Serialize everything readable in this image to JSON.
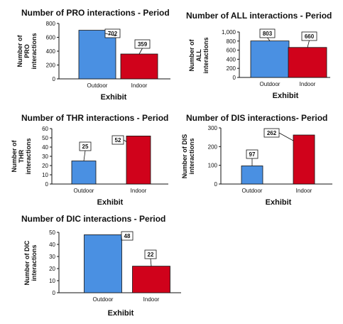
{
  "chart_data": [
    {
      "type": "bar",
      "title": "Number of PRO interactions - Period",
      "xlabel": "Exhibit",
      "ylabel": [
        "Number of",
        "PRO",
        "interactions"
      ],
      "categories": [
        "Outdoor",
        "Indoor"
      ],
      "values": [
        702,
        359
      ],
      "data_labels": [
        "702",
        "359"
      ],
      "yticks": [
        "0",
        "200",
        "400",
        "600",
        "800"
      ],
      "ylim": [
        0,
        800
      ],
      "colors": [
        "#4a90e2",
        "#d0021b"
      ],
      "grid": false,
      "legend": "none"
    },
    {
      "type": "bar",
      "title": "Number of ALL interactions - Period",
      "xlabel": "Exhibit",
      "ylabel": [
        "Number of",
        "ALL",
        "interactions"
      ],
      "categories": [
        "Outdoor",
        "Indoor"
      ],
      "values": [
        803,
        660
      ],
      "data_labels": [
        "803",
        "660"
      ],
      "yticks": [
        "0",
        "200",
        "400",
        "600",
        "800",
        "1,000"
      ],
      "ylim": [
        0,
        1000
      ],
      "colors": [
        "#4a90e2",
        "#d0021b"
      ],
      "grid": false,
      "legend": "none"
    },
    {
      "type": "bar",
      "title": "Number of THR interactions - Period",
      "xlabel": "Exhibit",
      "ylabel": [
        "Number of",
        "THR",
        "interactions"
      ],
      "categories": [
        "Outdoor",
        "Indoor"
      ],
      "values": [
        25,
        52
      ],
      "data_labels": [
        "25",
        "52"
      ],
      "yticks": [
        "0",
        "10",
        "20",
        "30",
        "40",
        "50",
        "60"
      ],
      "ylim": [
        0,
        60
      ],
      "colors": [
        "#4a90e2",
        "#d0021b"
      ],
      "grid": false,
      "legend": "none"
    },
    {
      "type": "bar",
      "title": "Number of DIS interactions- Period",
      "xlabel": "Exhibit",
      "ylabel": [
        "Number of DIS",
        "interactions"
      ],
      "categories": [
        "Outdoor",
        "Indoor"
      ],
      "values": [
        97,
        262
      ],
      "data_labels": [
        "97",
        "262"
      ],
      "yticks": [
        "0",
        "100",
        "200",
        "300"
      ],
      "ylim": [
        0,
        300
      ],
      "colors": [
        "#4a90e2",
        "#d0021b"
      ],
      "grid": false,
      "legend": "none"
    },
    {
      "type": "bar",
      "title": "Number of DIC interactions - Period",
      "xlabel": "Exhibit",
      "ylabel": [
        "Number of DIC",
        "interactions"
      ],
      "categories": [
        "Outdoor",
        "Indoor"
      ],
      "values": [
        48,
        22
      ],
      "data_labels": [
        "48",
        "22"
      ],
      "yticks": [
        "0",
        "10",
        "20",
        "30",
        "40",
        "50"
      ],
      "ylim": [
        0,
        50
      ],
      "colors": [
        "#4a90e2",
        "#d0021b"
      ],
      "grid": false,
      "legend": "none"
    }
  ]
}
